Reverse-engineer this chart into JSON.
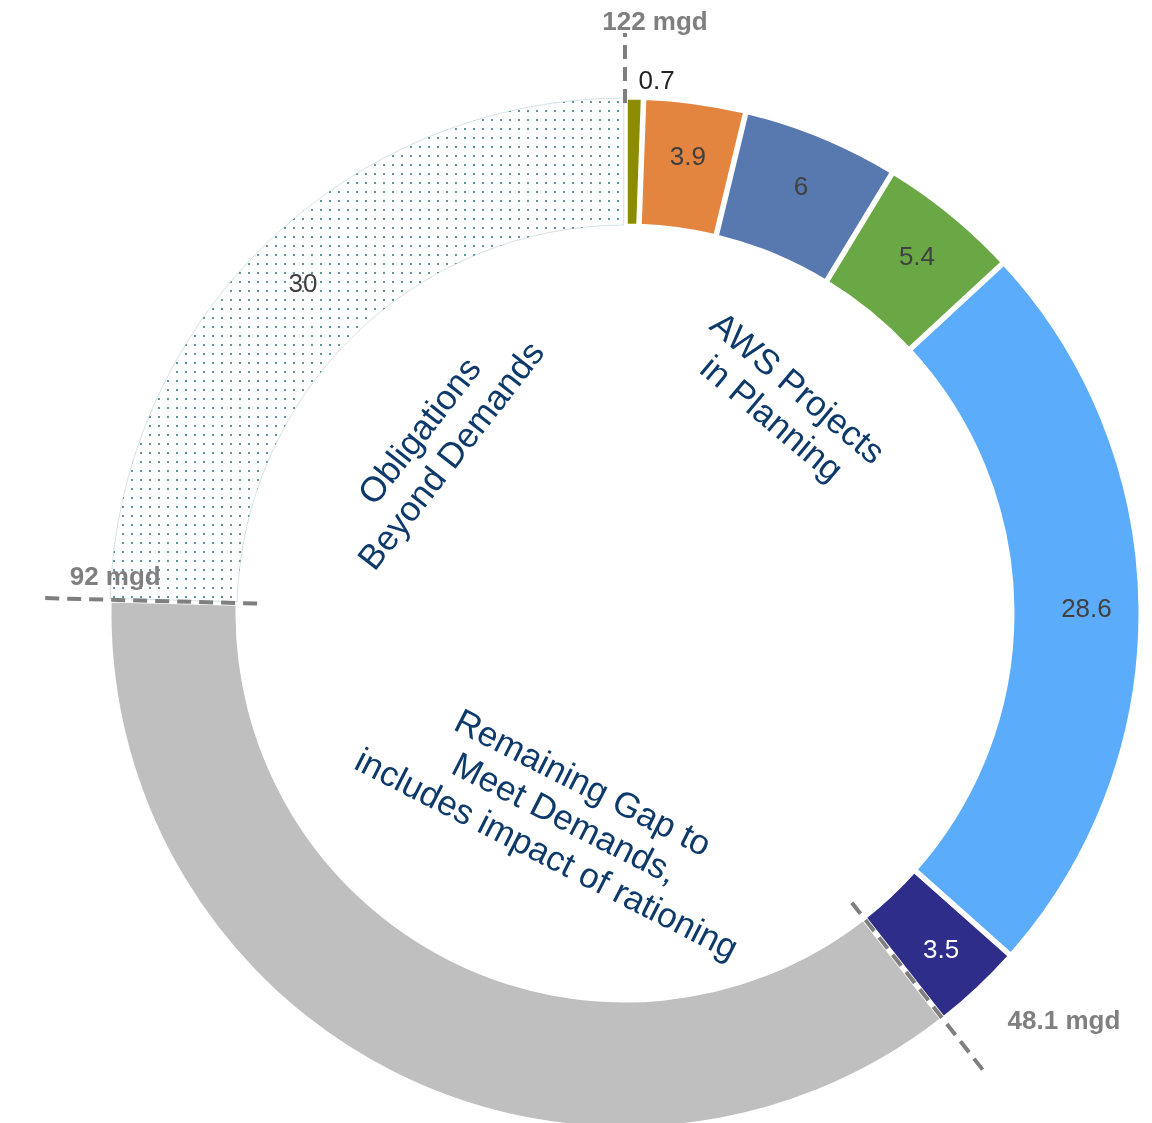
{
  "chart_data": {
    "type": "donut",
    "categories": [
      null,
      null,
      null,
      null,
      null,
      null,
      null,
      null
    ],
    "values": [
      0.7,
      3.9,
      6,
      5.4,
      28.6,
      3.5,
      43.9,
      30
    ],
    "colors": [
      "#8c8c00",
      "#e3843f",
      "#5878b0",
      "#6aa745",
      "#5cacfc",
      "#2e2e8a",
      "#bfbfbf",
      "#2e6f7a"
    ],
    "value_labels": [
      "0.7",
      "3.9",
      "6",
      "5.4",
      "28.6",
      "3.5",
      null,
      "30"
    ],
    "annotations": [
      "AWS Projects\nin Planning",
      "Obligations\nBeyond Demands",
      "Remaining Gap to\nMeet Demands,\nincludes impact of rationing",
      "122 mgd",
      "92 mgd",
      "48.1 mgd"
    ]
  }
}
